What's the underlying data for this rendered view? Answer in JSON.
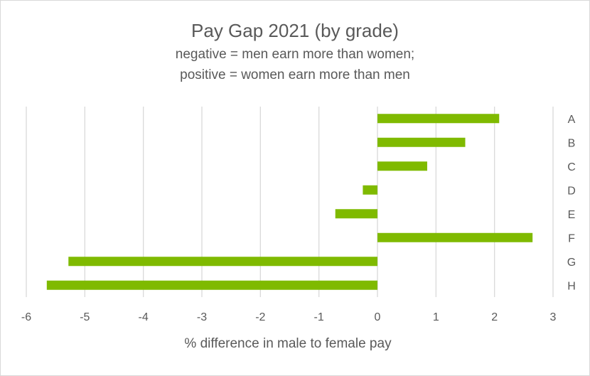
{
  "chart_data": {
    "type": "bar",
    "orientation": "horizontal",
    "title": "Pay Gap 2021 (by grade)",
    "subtitle": [
      "negative = men earn more than women;",
      "positive = women earn more than men"
    ],
    "xlabel": "% difference in male to female pay",
    "ylabel": "",
    "categories": [
      "A",
      "B",
      "C",
      "D",
      "E",
      "F",
      "G",
      "H"
    ],
    "values": [
      2.08,
      1.5,
      0.85,
      -0.25,
      -0.72,
      2.65,
      -5.28,
      -5.65
    ],
    "xlim": [
      -6,
      3
    ],
    "xticks": [
      "-6",
      "-5",
      "-4",
      "-3",
      "-2",
      "-1",
      "0",
      "1",
      "2",
      "3"
    ],
    "grid": true,
    "legend": false,
    "bar_color": "#7fba00",
    "grid_color": "#d9d9d9"
  }
}
